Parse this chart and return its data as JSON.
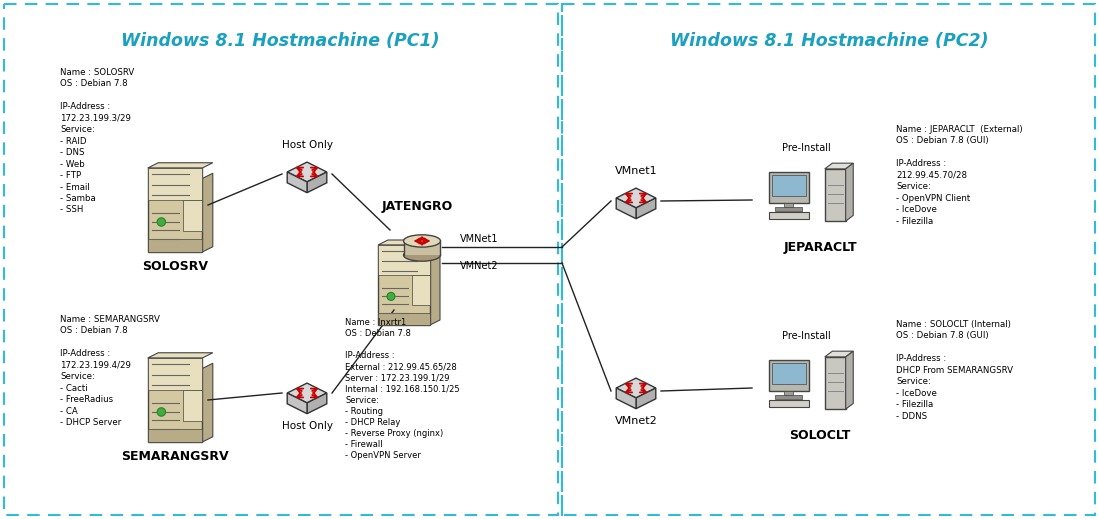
{
  "title_pc1": "Windows 8.1 Hostmachine (PC1)",
  "title_pc2": "Windows 8.1 Hostmachine (PC2)",
  "title_color": "#1AA0C0",
  "background_color": "#FFFFFF",
  "border_color": "#30BBDD",
  "solosrv_label": "SOLOSRV",
  "solosrv_info": "Name : SOLOSRV\nOS : Debian 7.8\n\nIP-Address :\n172.23.199.3/29\nService:\n- RAID\n- DNS\n- Web\n- FTP\n- Email\n- Samba\n- SSH",
  "semarangsrv_label": "SEMARANGSRV",
  "semarangsrv_info": "Name : SEMARANGSRV\nOS : Debian 7.8\n\nIP-Address :\n172.23.199.4/29\nService:\n- Cacti\n- FreeRadius\n- CA\n- DHCP Server",
  "jatengro_label": "JATENGRO",
  "jatengro_info": "Name : Inxrtr1\nOS : Debian 7.8\n\nIP-Address :\nExternal : 212.99.45.65/28\nServer : 172.23.199.1/29\nInternal : 192.168.150.1/25\nService:\n- Routing\n- DHCP Relay\n- Reverse Proxy (nginx)\n- Firewall\n- OpenVPN Server",
  "jeparaclt_label": "JEPARACLT",
  "jeparaclt_info": "Name : JEPARACLT  (External)\nOS : Debian 7.8 (GUI)\n\nIP-Address :\n212.99.45.70/28\nService:\n- OpenVPN Client\n- IceDove\n- Filezilla",
  "soloclt_label": "SOLOCLT",
  "soloclt_info": "Name : SOLOCLT (Internal)\nOS : Debian 7.8 (GUI)\n\nIP-Address :\nDHCP From SEMARANGSRV\nService:\n- IceDove\n- Filezilla\n- DDNS",
  "vmnet1_label": "VMNet1",
  "vmnet2_label": "VMNet2",
  "host_only_label": "Host Only",
  "pre_install_label": "Pre-Install",
  "vmnet1r_label": "VMnet1",
  "vmnet2r_label": "VMnet2"
}
